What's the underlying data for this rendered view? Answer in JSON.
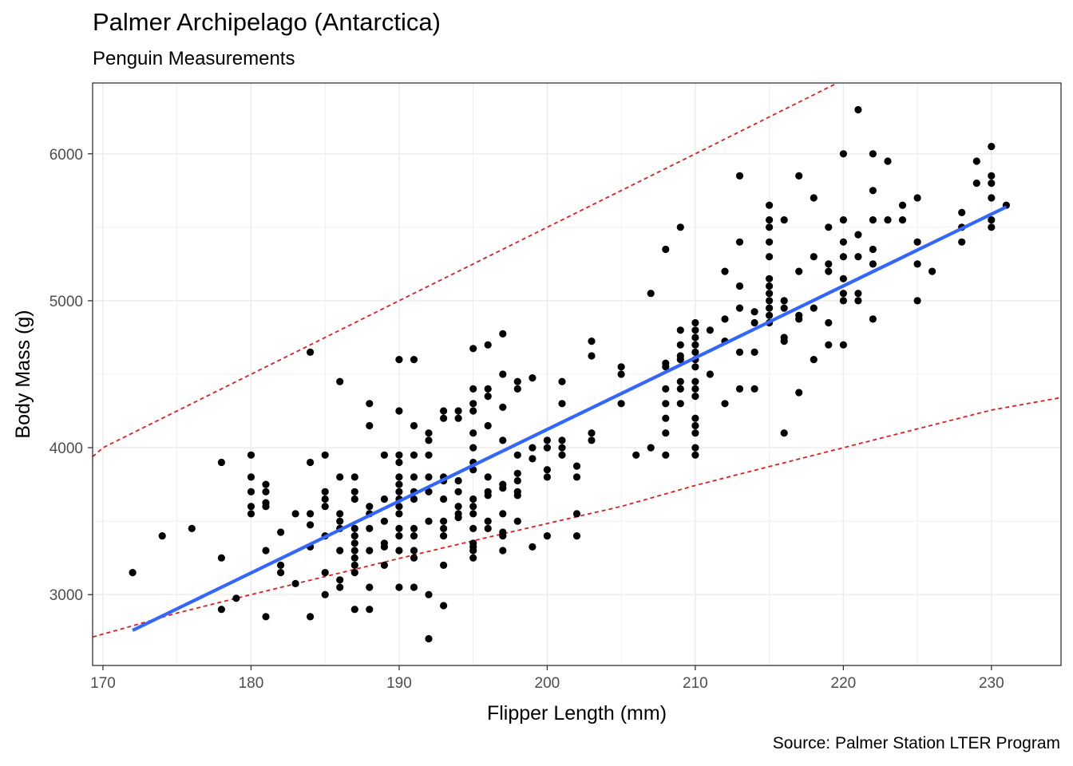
{
  "header": {
    "title": "Palmer Archipelago (Antarctica)",
    "subtitle": "Penguin Measurements",
    "caption": "Source: Palmer Station LTER Program"
  },
  "chart_data": {
    "type": "scatter",
    "xlabel": "Flipper Length (mm)",
    "ylabel": "Body Mass (g)",
    "xlim": [
      169.3,
      234.7
    ],
    "ylim": [
      2518,
      6482
    ],
    "x_ticks": [
      170,
      180,
      190,
      200,
      210,
      220,
      230
    ],
    "y_ticks": [
      3000,
      4000,
      5000,
      6000
    ],
    "grid": true,
    "colors": {
      "points": "#000000",
      "fit_line": "#3366FF",
      "bounds": "#E41A1C",
      "grid": "#EBEBEB",
      "panel_border": "#333333"
    },
    "points": [
      [
        172,
        3150
      ],
      [
        174,
        3400
      ],
      [
        176,
        3450
      ],
      [
        178,
        3250
      ],
      [
        178,
        3900
      ],
      [
        178,
        2900
      ],
      [
        179,
        2975
      ],
      [
        180,
        3950
      ],
      [
        180,
        3800
      ],
      [
        180,
        3700
      ],
      [
        180,
        3600
      ],
      [
        180,
        3550
      ],
      [
        181,
        3750
      ],
      [
        181,
        3700
      ],
      [
        181,
        3625
      ],
      [
        181,
        3600
      ],
      [
        181,
        3300
      ],
      [
        181,
        2850
      ],
      [
        182,
        3425
      ],
      [
        182,
        3200
      ],
      [
        182,
        3150
      ],
      [
        183,
        3550
      ],
      [
        183,
        3075
      ],
      [
        184,
        4650
      ],
      [
        184,
        3900
      ],
      [
        184,
        3550
      ],
      [
        184,
        3475
      ],
      [
        184,
        3325
      ],
      [
        184,
        2850
      ],
      [
        185,
        3950
      ],
      [
        185,
        3700
      ],
      [
        185,
        3650
      ],
      [
        185,
        3600
      ],
      [
        185,
        3400
      ],
      [
        185,
        3150
      ],
      [
        185,
        3000
      ],
      [
        186,
        4450
      ],
      [
        186,
        3800
      ],
      [
        186,
        3550
      ],
      [
        186,
        3500
      ],
      [
        186,
        3450
      ],
      [
        186,
        3300
      ],
      [
        186,
        3100
      ],
      [
        186,
        3050
      ],
      [
        187,
        3800
      ],
      [
        187,
        3700
      ],
      [
        187,
        3650
      ],
      [
        187,
        3450
      ],
      [
        187,
        3400
      ],
      [
        187,
        3350
      ],
      [
        187,
        3300
      ],
      [
        187,
        3250
      ],
      [
        187,
        3200
      ],
      [
        187,
        3150
      ],
      [
        187,
        2900
      ],
      [
        188,
        4300
      ],
      [
        188,
        4150
      ],
      [
        188,
        3600
      ],
      [
        188,
        3550
      ],
      [
        188,
        3450
      ],
      [
        188,
        3300
      ],
      [
        188,
        3050
      ],
      [
        188,
        2900
      ],
      [
        189,
        3950
      ],
      [
        189,
        3650
      ],
      [
        189,
        3500
      ],
      [
        189,
        3350
      ],
      [
        189,
        3325
      ],
      [
        189,
        3200
      ],
      [
        190,
        4600
      ],
      [
        190,
        4250
      ],
      [
        190,
        3950
      ],
      [
        190,
        3900
      ],
      [
        190,
        3800
      ],
      [
        190,
        3750
      ],
      [
        190,
        3700
      ],
      [
        190,
        3650
      ],
      [
        190,
        3600
      ],
      [
        190,
        3550
      ],
      [
        190,
        3450
      ],
      [
        190,
        3400
      ],
      [
        190,
        3300
      ],
      [
        190,
        3050
      ],
      [
        191,
        4600
      ],
      [
        191,
        4150
      ],
      [
        191,
        3950
      ],
      [
        191,
        3800
      ],
      [
        191,
        3700
      ],
      [
        191,
        3650
      ],
      [
        191,
        3450
      ],
      [
        191,
        3400
      ],
      [
        191,
        3300
      ],
      [
        191,
        3250
      ],
      [
        191,
        3050
      ],
      [
        192,
        4100
      ],
      [
        192,
        4050
      ],
      [
        192,
        3950
      ],
      [
        192,
        3800
      ],
      [
        192,
        3700
      ],
      [
        192,
        3500
      ],
      [
        192,
        3000
      ],
      [
        192,
        2700
      ],
      [
        193,
        4250
      ],
      [
        193,
        4200
      ],
      [
        193,
        3800
      ],
      [
        193,
        3775
      ],
      [
        193,
        3650
      ],
      [
        193,
        3500
      ],
      [
        193,
        3450
      ],
      [
        193,
        3400
      ],
      [
        193,
        3200
      ],
      [
        193,
        2925
      ],
      [
        194,
        4250
      ],
      [
        194,
        4200
      ],
      [
        194,
        3775
      ],
      [
        194,
        3700
      ],
      [
        194,
        3600
      ],
      [
        194,
        3550
      ],
      [
        194,
        3525
      ],
      [
        195,
        4675
      ],
      [
        195,
        4400
      ],
      [
        195,
        4300
      ],
      [
        195,
        4250
      ],
      [
        195,
        4100
      ],
      [
        195,
        4000
      ],
      [
        195,
        3900
      ],
      [
        195,
        3850
      ],
      [
        195,
        3650
      ],
      [
        195,
        3600
      ],
      [
        195,
        3550
      ],
      [
        195,
        3450
      ],
      [
        195,
        3350
      ],
      [
        195,
        3325
      ],
      [
        195,
        3300
      ],
      [
        195,
        3250
      ],
      [
        196,
        4700
      ],
      [
        196,
        4400
      ],
      [
        196,
        4350
      ],
      [
        196,
        4150
      ],
      [
        196,
        3800
      ],
      [
        196,
        3700
      ],
      [
        196,
        3675
      ],
      [
        196,
        3500
      ],
      [
        196,
        3450
      ],
      [
        197,
        4775
      ],
      [
        197,
        4500
      ],
      [
        197,
        4275
      ],
      [
        197,
        4050
      ],
      [
        197,
        3750
      ],
      [
        197,
        3725
      ],
      [
        197,
        3550
      ],
      [
        197,
        3425
      ],
      [
        197,
        3400
      ],
      [
        197,
        3300
      ],
      [
        198,
        4450
      ],
      [
        198,
        4400
      ],
      [
        198,
        3950
      ],
      [
        198,
        3825
      ],
      [
        198,
        3775
      ],
      [
        198,
        3700
      ],
      [
        198,
        3675
      ],
      [
        198,
        3500
      ],
      [
        199,
        4475
      ],
      [
        199,
        4000
      ],
      [
        199,
        3925
      ],
      [
        199,
        3325
      ],
      [
        200,
        4050
      ],
      [
        200,
        4000
      ],
      [
        200,
        3850
      ],
      [
        200,
        3800
      ],
      [
        200,
        3400
      ],
      [
        201,
        4450
      ],
      [
        201,
        4300
      ],
      [
        201,
        4050
      ],
      [
        201,
        4000
      ],
      [
        201,
        3950
      ],
      [
        202,
        3875
      ],
      [
        202,
        3800
      ],
      [
        202,
        3550
      ],
      [
        202,
        3400
      ],
      [
        203,
        4725
      ],
      [
        203,
        4625
      ],
      [
        203,
        4100
      ],
      [
        203,
        4050
      ],
      [
        205,
        4550
      ],
      [
        205,
        4500
      ],
      [
        205,
        4300
      ],
      [
        206,
        3950
      ],
      [
        207,
        5050
      ],
      [
        207,
        4000
      ],
      [
        208,
        5350
      ],
      [
        208,
        4575
      ],
      [
        208,
        4550
      ],
      [
        208,
        4400
      ],
      [
        208,
        4300
      ],
      [
        208,
        4200
      ],
      [
        208,
        4100
      ],
      [
        208,
        3950
      ],
      [
        209,
        5500
      ],
      [
        209,
        4800
      ],
      [
        209,
        4700
      ],
      [
        209,
        4625
      ],
      [
        209,
        4600
      ],
      [
        209,
        4450
      ],
      [
        209,
        4400
      ],
      [
        209,
        4300
      ],
      [
        210,
        4850
      ],
      [
        210,
        4800
      ],
      [
        210,
        4750
      ],
      [
        210,
        4700
      ],
      [
        210,
        4650
      ],
      [
        210,
        4600
      ],
      [
        210,
        4550
      ],
      [
        210,
        4450
      ],
      [
        210,
        4400
      ],
      [
        210,
        4350
      ],
      [
        210,
        4200
      ],
      [
        210,
        4150
      ],
      [
        210,
        4100
      ],
      [
        210,
        4000
      ],
      [
        210,
        3950
      ],
      [
        211,
        4800
      ],
      [
        211,
        4500
      ],
      [
        212,
        5200
      ],
      [
        212,
        4875
      ],
      [
        212,
        4725
      ],
      [
        212,
        4300
      ],
      [
        213,
        5850
      ],
      [
        213,
        5400
      ],
      [
        213,
        5100
      ],
      [
        213,
        4950
      ],
      [
        213,
        4650
      ],
      [
        213,
        4400
      ],
      [
        214,
        4925
      ],
      [
        214,
        4850
      ],
      [
        214,
        4650
      ],
      [
        214,
        4400
      ],
      [
        215,
        5650
      ],
      [
        215,
        5550
      ],
      [
        215,
        5500
      ],
      [
        215,
        5400
      ],
      [
        215,
        5300
      ],
      [
        215,
        5150
      ],
      [
        215,
        5100
      ],
      [
        215,
        5050
      ],
      [
        215,
        5000
      ],
      [
        215,
        4950
      ],
      [
        215,
        4900
      ],
      [
        215,
        4850
      ],
      [
        216,
        5550
      ],
      [
        216,
        5000
      ],
      [
        216,
        4950
      ],
      [
        216,
        4750
      ],
      [
        216,
        4725
      ],
      [
        216,
        4100
      ],
      [
        217,
        5850
      ],
      [
        217,
        5200
      ],
      [
        217,
        4900
      ],
      [
        217,
        4875
      ],
      [
        217,
        4375
      ],
      [
        218,
        5700
      ],
      [
        218,
        5300
      ],
      [
        218,
        4950
      ],
      [
        218,
        4600
      ],
      [
        219,
        5500
      ],
      [
        219,
        5250
      ],
      [
        219,
        5200
      ],
      [
        219,
        4850
      ],
      [
        219,
        4700
      ],
      [
        220,
        6000
      ],
      [
        220,
        5550
      ],
      [
        220,
        5400
      ],
      [
        220,
        5300
      ],
      [
        220,
        5150
      ],
      [
        220,
        5050
      ],
      [
        220,
        5000
      ],
      [
        220,
        4700
      ],
      [
        221,
        6300
      ],
      [
        221,
        5450
      ],
      [
        221,
        5300
      ],
      [
        221,
        5050
      ],
      [
        221,
        5000
      ],
      [
        222,
        6000
      ],
      [
        222,
        5750
      ],
      [
        222,
        5550
      ],
      [
        222,
        5350
      ],
      [
        222,
        5250
      ],
      [
        222,
        4875
      ],
      [
        223,
        5950
      ],
      [
        223,
        5550
      ],
      [
        224,
        5650
      ],
      [
        224,
        5550
      ],
      [
        225,
        5700
      ],
      [
        225,
        5400
      ],
      [
        225,
        5250
      ],
      [
        225,
        5000
      ],
      [
        226,
        5200
      ],
      [
        228,
        5600
      ],
      [
        228,
        5500
      ],
      [
        228,
        5400
      ],
      [
        229,
        5950
      ],
      [
        229,
        5800
      ],
      [
        230,
        6050
      ],
      [
        230,
        5850
      ],
      [
        230,
        5800
      ],
      [
        230,
        5700
      ],
      [
        230,
        5550
      ],
      [
        230,
        5500
      ],
      [
        231,
        5650
      ]
    ],
    "fit_line": [
      [
        172,
        2757
      ],
      [
        175.5,
        2928
      ],
      [
        180,
        3148
      ],
      [
        185,
        3392
      ],
      [
        190,
        3636
      ],
      [
        195,
        3880
      ],
      [
        200,
        4124
      ],
      [
        205,
        4368
      ],
      [
        210,
        4612
      ],
      [
        215,
        4856
      ],
      [
        220,
        5101
      ],
      [
        225,
        5345
      ],
      [
        231,
        5638
      ]
    ],
    "upper_bound": [
      [
        169.3,
        3939
      ],
      [
        170,
        4000
      ],
      [
        180,
        4500
      ],
      [
        190,
        5000
      ],
      [
        200,
        5500
      ],
      [
        210,
        6000
      ],
      [
        219.6,
        6482
      ]
    ],
    "lower_bound": [
      [
        169.3,
        2712
      ],
      [
        172,
        2788
      ],
      [
        175,
        2875
      ],
      [
        180,
        3000
      ],
      [
        185,
        3123
      ],
      [
        190,
        3246
      ],
      [
        195,
        3367
      ],
      [
        200,
        3484
      ],
      [
        205,
        3600
      ],
      [
        210,
        3743
      ],
      [
        215,
        3872
      ],
      [
        220,
        4000
      ],
      [
        225,
        4128
      ],
      [
        230,
        4256
      ],
      [
        234.7,
        4341
      ]
    ]
  }
}
